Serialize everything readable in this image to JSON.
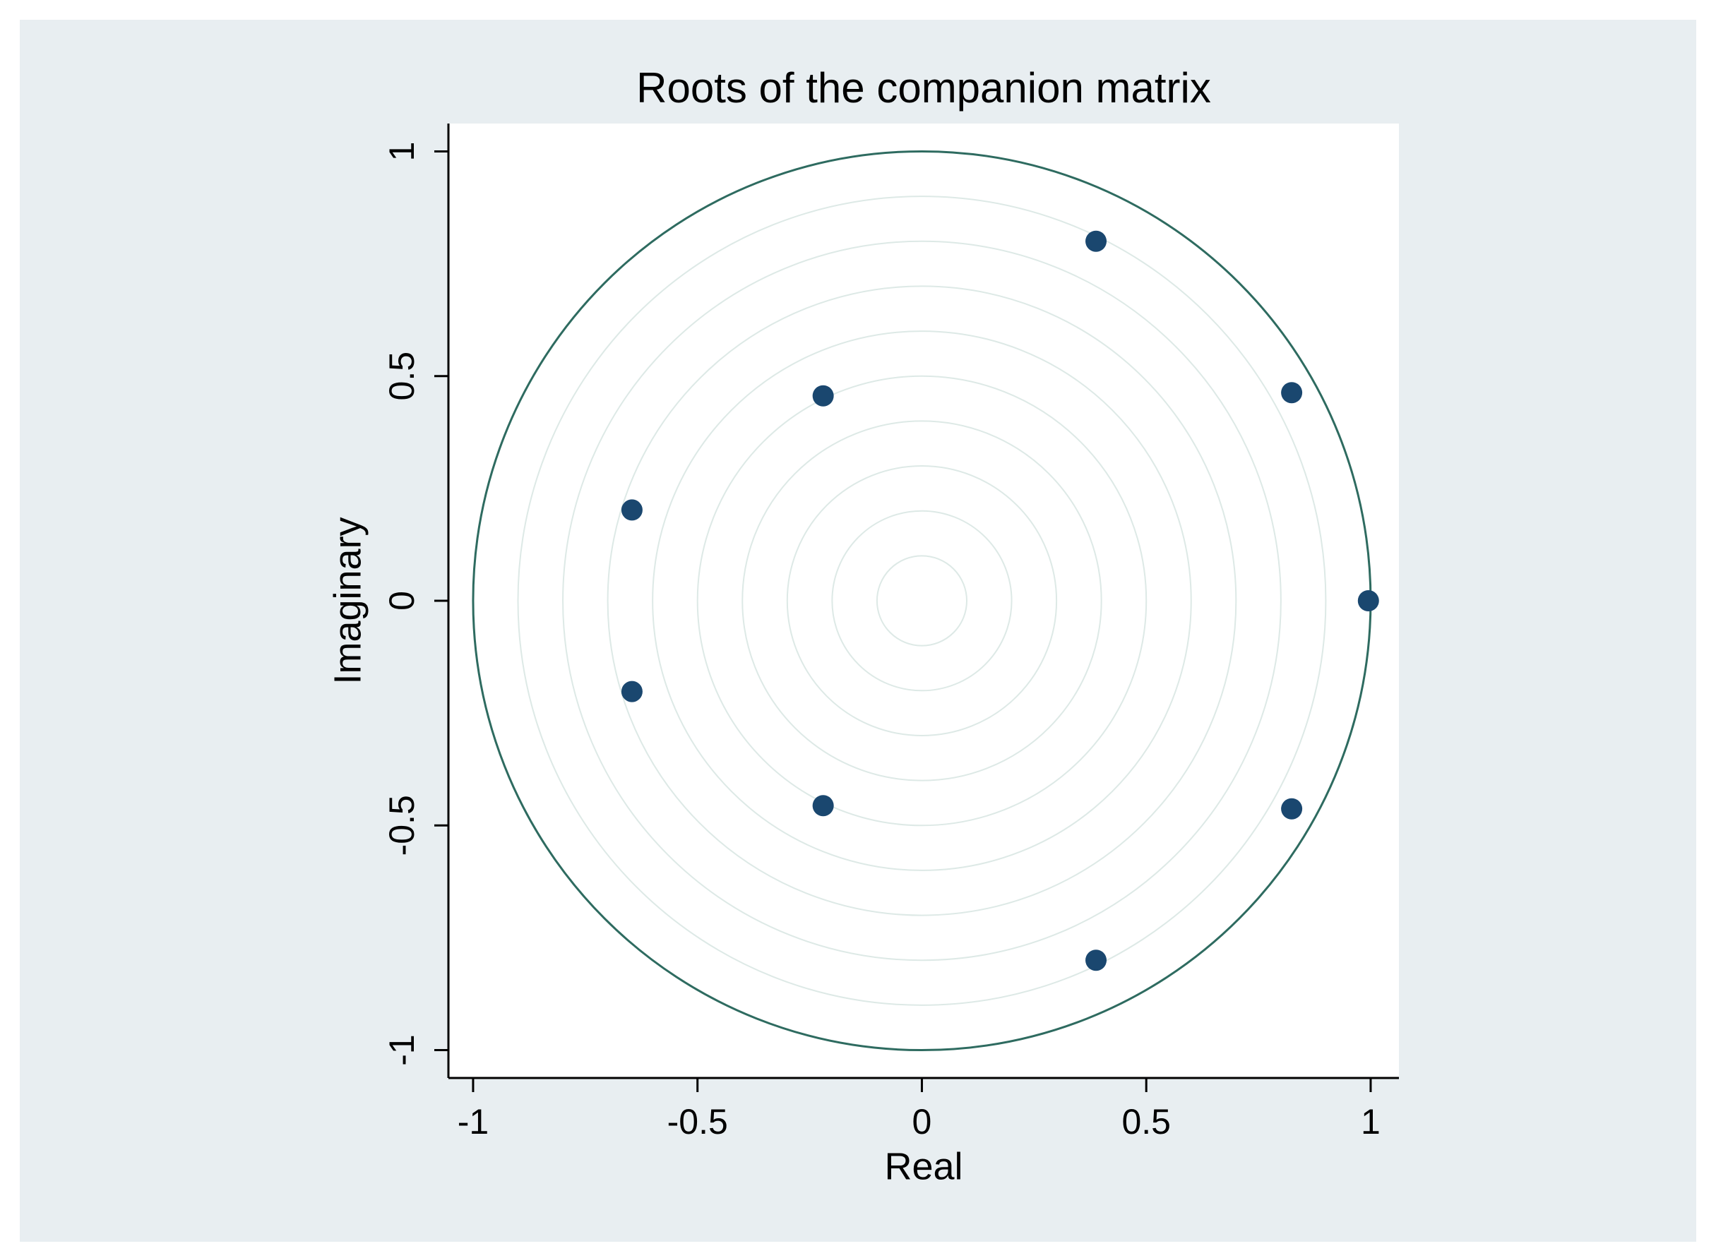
{
  "chart_data": {
    "type": "scatter",
    "title": "Roots of the companion matrix",
    "xlabel": "Real",
    "ylabel": "Imaginary",
    "x": [
      0.388,
      0.824,
      0.995,
      0.824,
      0.388,
      -0.22,
      -0.22,
      -0.646,
      -0.646
    ],
    "y": [
      0.8,
      0.463,
      0,
      -0.463,
      -0.8,
      0.456,
      -0.456,
      0.202,
      -0.202
    ],
    "color": "#1a476f",
    "xlim": [
      -1.055,
      1.063
    ],
    "ylim": [
      -1.062,
      1.062
    ],
    "xticks": [
      -1,
      -0.5,
      0,
      0.5,
      1
    ],
    "yticks": [
      -1,
      -0.5,
      0,
      0.5,
      1
    ],
    "unit_circle": true
  }
}
